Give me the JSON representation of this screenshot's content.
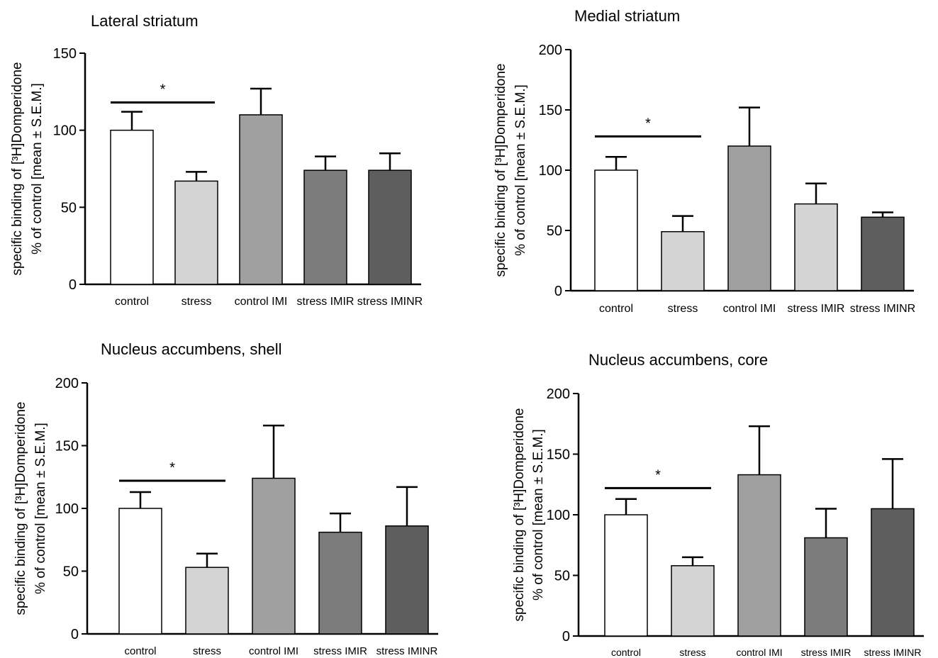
{
  "chart_data": [
    {
      "type": "bar",
      "title": "Lateral striatum",
      "ylabel_line1": "specific binding of [³H]Domperidone",
      "ylabel_line2": "% of control [mean ± S.E.M.]",
      "ylim": [
        0,
        150
      ],
      "yticks": [
        "0",
        "50",
        "100",
        "150"
      ],
      "categories": [
        "control",
        "stress",
        "control IMI",
        "stress IMIR",
        "stress IMINR"
      ],
      "values": [
        100,
        67,
        110,
        74,
        74
      ],
      "errors": [
        12,
        6,
        17,
        9,
        11
      ],
      "colors": [
        "#ffffff",
        "#d4d4d4",
        "#a0a0a0",
        "#7c7c7c",
        "#5e5e5e"
      ],
      "significance": {
        "from": 0,
        "to": 1,
        "y": 118,
        "label": "*"
      }
    },
    {
      "type": "bar",
      "title": "Medial striatum",
      "ylabel_line1": "specific binding of [³H]Domperidone",
      "ylabel_line2": "% of control [mean ± S.E.M.]",
      "ylim": [
        0,
        200
      ],
      "yticks": [
        "0",
        "50",
        "100",
        "150",
        "200"
      ],
      "categories": [
        "control",
        "stress",
        "control IMI",
        "stress IMIR",
        "stress IMINR"
      ],
      "values": [
        100,
        49,
        120,
        72,
        61
      ],
      "errors": [
        11,
        13,
        32,
        17,
        4
      ],
      "colors": [
        "#ffffff",
        "#d4d4d4",
        "#a0a0a0",
        "#d4d4d4",
        "#5e5e5e"
      ],
      "significance": {
        "from": 0,
        "to": 1,
        "y": 128,
        "label": "*"
      }
    },
    {
      "type": "bar",
      "title": "Nucleus accumbens, shell",
      "ylabel_line1": "specific binding of [³H]Domperidone",
      "ylabel_line2": "% of control [mean ± S.E.M.]",
      "ylim": [
        0,
        200
      ],
      "yticks": [
        "0",
        "50",
        "100",
        "150",
        "200"
      ],
      "categories": [
        "control",
        "stress",
        "control IMI",
        "stress IMIR",
        "stress IMINR"
      ],
      "values": [
        100,
        53,
        124,
        81,
        86
      ],
      "errors": [
        13,
        11,
        42,
        15,
        31
      ],
      "colors": [
        "#ffffff",
        "#d4d4d4",
        "#a0a0a0",
        "#7c7c7c",
        "#5e5e5e"
      ],
      "significance": {
        "from": 0,
        "to": 1,
        "y": 122,
        "label": "*"
      }
    },
    {
      "type": "bar",
      "title": "Nucleus accumbens, core",
      "ylabel_line1": "specific binding of [³H]Domperidone",
      "ylabel_line2": "% of control [mean ± S.E.M.]",
      "ylim": [
        0,
        200
      ],
      "yticks": [
        "0",
        "50",
        "100",
        "150",
        "200"
      ],
      "categories": [
        "control",
        "stress",
        "control IMI",
        "stress IMIR",
        "stress IMINR"
      ],
      "values": [
        100,
        58,
        133,
        81,
        105
      ],
      "errors": [
        13,
        7,
        40,
        24,
        41
      ],
      "colors": [
        "#ffffff",
        "#d4d4d4",
        "#a0a0a0",
        "#7c7c7c",
        "#5e5e5e"
      ],
      "significance": {
        "from": 0,
        "to": 1,
        "y": 122,
        "label": "*"
      }
    }
  ]
}
